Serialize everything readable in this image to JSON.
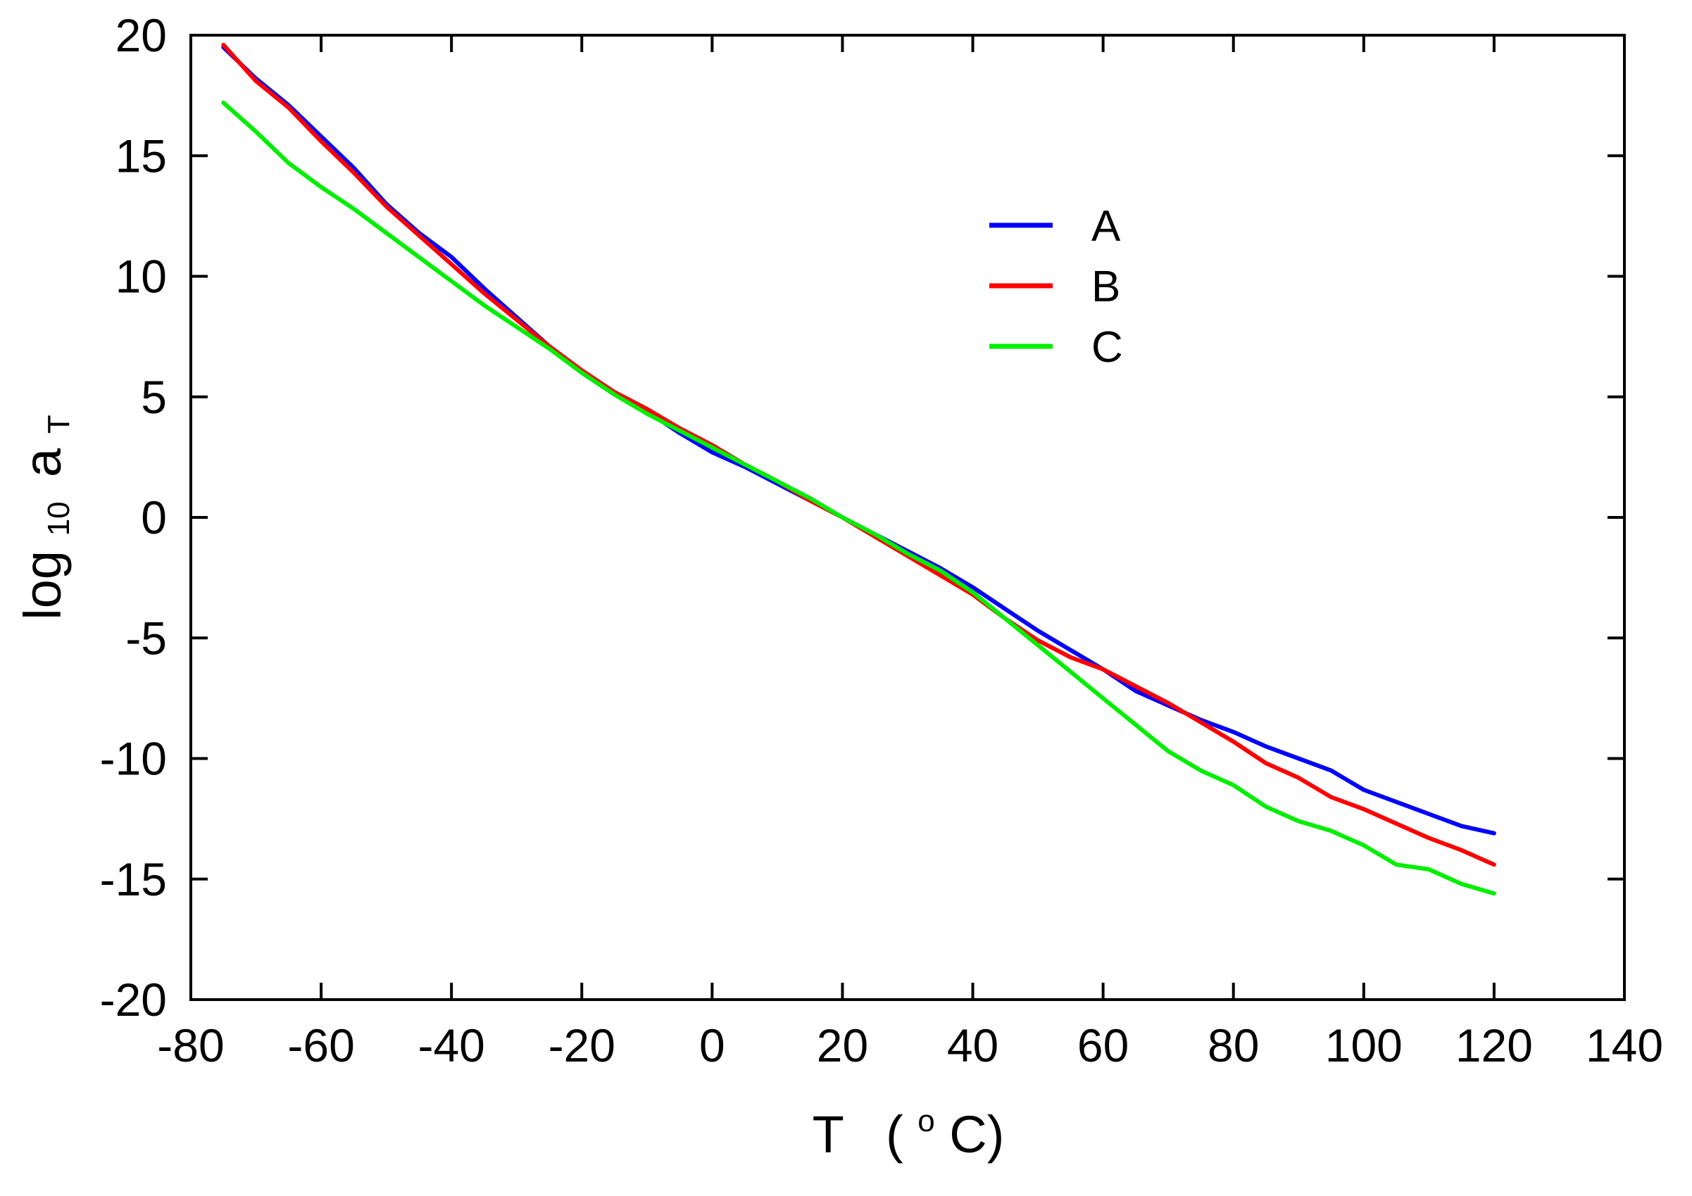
{
  "chart_data": {
    "type": "line",
    "title": "",
    "xlabel": {
      "main": "T",
      "open": "(",
      "sup": "o",
      "unit": "C)"
    },
    "ylabel": {
      "main": "log",
      "sub1": "10",
      "var": "a",
      "sub2": "T"
    },
    "xlim": [
      -80,
      140
    ],
    "ylim": [
      -20,
      20
    ],
    "xticks": [
      -80,
      -60,
      -40,
      -20,
      0,
      20,
      40,
      60,
      80,
      100,
      120,
      140
    ],
    "yticks": [
      -20,
      -15,
      -10,
      -5,
      0,
      5,
      10,
      15,
      20
    ],
    "grid": false,
    "legend_position": "upper-center",
    "series": [
      {
        "name": "A",
        "color": "#0000ff",
        "x": [
          -75,
          -70,
          -65,
          -60,
          -55,
          -50,
          -45,
          -40,
          -35,
          -30,
          -25,
          -20,
          -15,
          -10,
          -5,
          0,
          5,
          10,
          15,
          20,
          25,
          30,
          35,
          40,
          45,
          50,
          55,
          60,
          65,
          70,
          75,
          80,
          85,
          90,
          95,
          100,
          105,
          110,
          115,
          120
        ],
        "y": [
          19.5,
          18.2,
          17.1,
          15.8,
          14.5,
          13.0,
          11.8,
          10.8,
          9.5,
          8.3,
          7.1,
          6.0,
          5.1,
          4.4,
          3.5,
          2.7,
          2.1,
          1.4,
          0.7,
          0.0,
          -0.7,
          -1.4,
          -2.1,
          -2.9,
          -3.8,
          -4.7,
          -5.5,
          -6.3,
          -7.2,
          -7.8,
          -8.4,
          -8.9,
          -9.5,
          -10.0,
          -10.5,
          -11.3,
          -11.8,
          -12.3,
          -12.8,
          -13.1
        ]
      },
      {
        "name": "B",
        "color": "#ff0000",
        "x": [
          -75,
          -70,
          -65,
          -60,
          -55,
          -50,
          -45,
          -40,
          -35,
          -30,
          -25,
          -20,
          -15,
          -10,
          -5,
          0,
          5,
          10,
          15,
          20,
          25,
          30,
          35,
          40,
          45,
          50,
          55,
          60,
          65,
          70,
          75,
          80,
          85,
          90,
          95,
          100,
          105,
          110,
          115,
          120
        ],
        "y": [
          19.6,
          18.1,
          17.0,
          15.6,
          14.3,
          12.9,
          11.7,
          10.5,
          9.3,
          8.2,
          7.1,
          6.1,
          5.2,
          4.5,
          3.7,
          3.0,
          2.2,
          1.5,
          0.7,
          0.0,
          -0.8,
          -1.6,
          -2.4,
          -3.2,
          -4.2,
          -5.1,
          -5.8,
          -6.3,
          -7.0,
          -7.7,
          -8.5,
          -9.3,
          -10.2,
          -10.8,
          -11.6,
          -12.1,
          -12.7,
          -13.3,
          -13.8,
          -14.4
        ]
      },
      {
        "name": "C",
        "color": "#00ee00",
        "x": [
          -75,
          -70,
          -65,
          -60,
          -55,
          -50,
          -45,
          -40,
          -35,
          -30,
          -25,
          -20,
          -15,
          -10,
          -5,
          0,
          5,
          10,
          15,
          20,
          25,
          30,
          35,
          40,
          45,
          50,
          55,
          60,
          65,
          70,
          75,
          80,
          85,
          90,
          95,
          100,
          105,
          110,
          115,
          120
        ],
        "y": [
          17.2,
          16.0,
          14.7,
          13.7,
          12.8,
          11.8,
          10.8,
          9.8,
          8.8,
          7.9,
          7.0,
          6.0,
          5.1,
          4.3,
          3.6,
          2.9,
          2.2,
          1.5,
          0.8,
          0.0,
          -0.7,
          -1.5,
          -2.2,
          -3.1,
          -4.2,
          -5.3,
          -6.4,
          -7.5,
          -8.6,
          -9.7,
          -10.5,
          -11.1,
          -12.0,
          -12.6,
          -13.0,
          -13.6,
          -14.4,
          -14.6,
          -15.2,
          -15.6
        ]
      }
    ]
  }
}
